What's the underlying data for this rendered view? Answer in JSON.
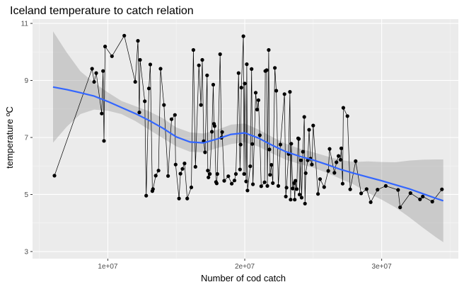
{
  "chart_data": {
    "type": "scatter",
    "title": "Iceland temperature to catch relation",
    "xlabel": "Number of cod catch",
    "ylabel": "temperature ºC",
    "xlim": [
      4500000,
      35600000
    ],
    "ylim": [
      2.75,
      11.15
    ],
    "grid": true,
    "panel_background": "#ebebeb",
    "grid_major_color": "#ffffff",
    "x_ticks": [
      {
        "value": 10000000,
        "label": "1e+07"
      },
      {
        "value": 20000000,
        "label": "2e+07"
      },
      {
        "value": 30000000,
        "label": "3e+07"
      }
    ],
    "y_ticks": [
      {
        "value": 3,
        "label": "3"
      },
      {
        "value": 5,
        "label": "5"
      },
      {
        "value": 7,
        "label": "7"
      },
      {
        "value": 9,
        "label": "9"
      },
      {
        "value": 11,
        "label": "11"
      }
    ],
    "series": [
      {
        "kind": "points_and_path",
        "color": "#000000",
        "points": [
          [
            6100000,
            5.66
          ],
          [
            8850000,
            9.41
          ],
          [
            9000000,
            8.95
          ],
          [
            9150000,
            9.26
          ],
          [
            9550000,
            7.84
          ],
          [
            9650000,
            9.33
          ],
          [
            9720000,
            6.88
          ],
          [
            9800000,
            10.19
          ],
          [
            10300000,
            9.85
          ],
          [
            11200000,
            10.57
          ],
          [
            12000000,
            8.95
          ],
          [
            12200000,
            10.39
          ],
          [
            12300000,
            7.88
          ],
          [
            12350000,
            9.72
          ],
          [
            12700000,
            8.27
          ],
          [
            12800000,
            4.96
          ],
          [
            13000000,
            8.72
          ],
          [
            13100000,
            9.56
          ],
          [
            13250000,
            5.12
          ],
          [
            13300000,
            5.19
          ],
          [
            13500000,
            5.66
          ],
          [
            13700000,
            5.84
          ],
          [
            13850000,
            9.41
          ],
          [
            14100000,
            8.14
          ],
          [
            14400000,
            5.65
          ],
          [
            14650000,
            7.64
          ],
          [
            14900000,
            7.79
          ],
          [
            14950000,
            6.05
          ],
          [
            15200000,
            4.86
          ],
          [
            15300000,
            5.73
          ],
          [
            15450000,
            5.9
          ],
          [
            15600000,
            6.09
          ],
          [
            15800000,
            4.86
          ],
          [
            16100000,
            5.25
          ],
          [
            16250000,
            10.07
          ],
          [
            16400000,
            5.97
          ],
          [
            16650000,
            9.53
          ],
          [
            16800000,
            8.14
          ],
          [
            16900000,
            9.72
          ],
          [
            17000000,
            6.87
          ],
          [
            17100000,
            6.48
          ],
          [
            17250000,
            9.18
          ],
          [
            17300000,
            5.84
          ],
          [
            17350000,
            5.6
          ],
          [
            17450000,
            5.72
          ],
          [
            17600000,
            7.2
          ],
          [
            17700000,
            8.85
          ],
          [
            17750000,
            7.48
          ],
          [
            17800000,
            7.4
          ],
          [
            17900000,
            5.44
          ],
          [
            17950000,
            5.39
          ],
          [
            18000000,
            5.72
          ],
          [
            18200000,
            9.92
          ],
          [
            18300000,
            6.99
          ],
          [
            18350000,
            7.19
          ],
          [
            18500000,
            5.48
          ],
          [
            18800000,
            5.64
          ],
          [
            19050000,
            5.38
          ],
          [
            19250000,
            5.49
          ],
          [
            19350000,
            5.72
          ],
          [
            19550000,
            9.26
          ],
          [
            19650000,
            5.88
          ],
          [
            19700000,
            6.75
          ],
          [
            19750000,
            8.75
          ],
          [
            19900000,
            10.55
          ],
          [
            19950000,
            5.72
          ],
          [
            20000000,
            8.89
          ],
          [
            20100000,
            5.46
          ],
          [
            20150000,
            9.57
          ],
          [
            20200000,
            5.14
          ],
          [
            20400000,
            5.99
          ],
          [
            20500000,
            9.4
          ],
          [
            20550000,
            6.77
          ],
          [
            20600000,
            5.36
          ],
          [
            20800000,
            8.57
          ],
          [
            20900000,
            7.98
          ],
          [
            21000000,
            8.31
          ],
          [
            21100000,
            7.08
          ],
          [
            21200000,
            5.29
          ],
          [
            21450000,
            5.43
          ],
          [
            21500000,
            9.33
          ],
          [
            21600000,
            9.36
          ],
          [
            21650000,
            5.3
          ],
          [
            21750000,
            10.07
          ],
          [
            21800000,
            6.58
          ],
          [
            21850000,
            5.69
          ],
          [
            21950000,
            6.04
          ],
          [
            22050000,
            5.4
          ],
          [
            22200000,
            9.44
          ],
          [
            22300000,
            8.64
          ],
          [
            22450000,
            5.3
          ],
          [
            22600000,
            6.75
          ],
          [
            22900000,
            8.52
          ],
          [
            23000000,
            4.93
          ],
          [
            23050000,
            5.24
          ],
          [
            23200000,
            6.42
          ],
          [
            23300000,
            8.6
          ],
          [
            23350000,
            4.82
          ],
          [
            23400000,
            6.78
          ],
          [
            23500000,
            5.21
          ],
          [
            23600000,
            5.4
          ],
          [
            23650000,
            4.82
          ],
          [
            23700000,
            5.48
          ],
          [
            23800000,
            5.19
          ],
          [
            23900000,
            6.97
          ],
          [
            23950000,
            6.95
          ],
          [
            24000000,
            5.0
          ],
          [
            24100000,
            6.2
          ],
          [
            24150000,
            4.89
          ],
          [
            24250000,
            6.5
          ],
          [
            24350000,
            7.72
          ],
          [
            24400000,
            4.68
          ],
          [
            24450000,
            5.75
          ],
          [
            24600000,
            6.2
          ],
          [
            24700000,
            7.27
          ],
          [
            24800000,
            6.26
          ],
          [
            24900000,
            6.05
          ],
          [
            25000000,
            7.42
          ],
          [
            25350000,
            5.02
          ],
          [
            25500000,
            5.54
          ],
          [
            25800000,
            5.26
          ],
          [
            26100000,
            5.83
          ],
          [
            26200000,
            6.6
          ],
          [
            26550000,
            5.76
          ],
          [
            26700000,
            6.13
          ],
          [
            26850000,
            6.35
          ],
          [
            27000000,
            6.22
          ],
          [
            27050000,
            6.62
          ],
          [
            27150000,
            5.38
          ],
          [
            27200000,
            8.04
          ],
          [
            27500000,
            7.75
          ],
          [
            27700000,
            5.18
          ],
          [
            28100000,
            6.17
          ],
          [
            28500000,
            5.04
          ],
          [
            28900000,
            5.19
          ],
          [
            29200000,
            4.73
          ],
          [
            29700000,
            5.17
          ],
          [
            30300000,
            5.3
          ],
          [
            31200000,
            5.16
          ],
          [
            31350000,
            4.55
          ],
          [
            32100000,
            5.05
          ],
          [
            32800000,
            4.83
          ],
          [
            33000000,
            4.93
          ],
          [
            33700000,
            4.75
          ],
          [
            34400000,
            5.18
          ]
        ]
      },
      {
        "kind": "smooth",
        "method": "loess",
        "color": "#3366ff",
        "band_color": "#999999",
        "x": [
          6000000,
          7000000,
          8000000,
          9000000,
          10000000,
          11000000,
          12000000,
          13000000,
          14000000,
          15000000,
          16000000,
          17000000,
          18000000,
          19000000,
          20000000,
          21000000,
          22000000,
          23000000,
          24000000,
          25000000,
          26000000,
          27000000,
          28000000,
          29000000,
          30000000,
          31000000,
          32000000,
          33000000,
          34000000,
          34500000
        ],
        "y": [
          8.77,
          8.68,
          8.57,
          8.45,
          8.26,
          8.05,
          7.84,
          7.6,
          7.33,
          7.02,
          6.84,
          6.81,
          6.95,
          7.11,
          7.16,
          6.98,
          6.73,
          6.5,
          6.34,
          6.21,
          6.05,
          5.88,
          5.74,
          5.61,
          5.48,
          5.34,
          5.2,
          5.03,
          4.86,
          4.78
        ],
        "ymin": [
          6.82,
          7.38,
          7.82,
          7.98,
          7.94,
          7.82,
          7.58,
          7.28,
          6.98,
          6.69,
          6.5,
          6.48,
          6.63,
          6.77,
          6.83,
          6.68,
          6.44,
          6.22,
          6.07,
          5.94,
          5.76,
          5.55,
          5.34,
          5.06,
          4.82,
          4.55,
          4.21,
          3.84,
          3.49,
          3.33
        ],
        "ymax": [
          10.72,
          9.98,
          9.32,
          8.92,
          8.58,
          8.28,
          8.1,
          7.92,
          7.68,
          7.35,
          7.18,
          7.14,
          7.27,
          7.45,
          7.49,
          7.28,
          7.02,
          6.78,
          6.61,
          6.48,
          6.34,
          6.21,
          6.14,
          6.16,
          6.14,
          6.13,
          6.19,
          6.22,
          6.23,
          6.23
        ]
      }
    ]
  }
}
